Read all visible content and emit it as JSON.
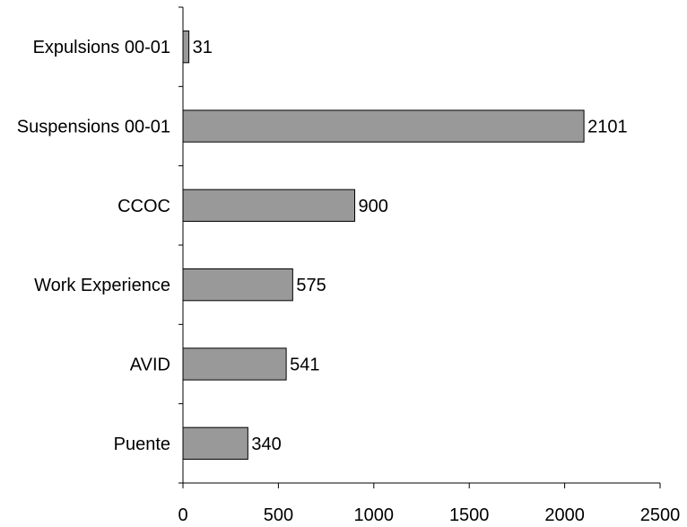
{
  "chart_data": {
    "type": "bar",
    "orientation": "horizontal",
    "categories": [
      "Expulsions 00-01",
      "Suspensions 00-01",
      "CCOC",
      "Work Experience",
      "AVID",
      "Puente"
    ],
    "values": [
      31,
      2101,
      900,
      575,
      541,
      340
    ],
    "xlim": [
      0,
      2500
    ],
    "xticks": [
      0,
      500,
      1000,
      1500,
      2000,
      2500
    ],
    "title": "",
    "xlabel": "",
    "ylabel": "",
    "grid": false,
    "legend": "none",
    "colors": {
      "bar_fill": "#999999",
      "bar_stroke": "#000000",
      "axis": "#000000",
      "text": "#000000"
    }
  }
}
